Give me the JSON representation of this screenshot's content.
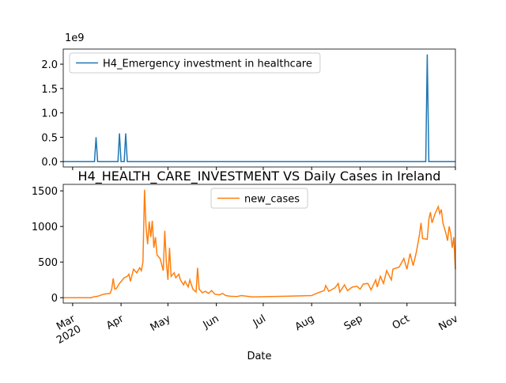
{
  "chart_data": [
    {
      "type": "line",
      "x_offset_label": "1e9",
      "x": [
        -6,
        14,
        15,
        16,
        29,
        30,
        31,
        33,
        34,
        35,
        226,
        227,
        228,
        245
      ],
      "series": [
        {
          "name": "H4_Emergency investment in healthcare",
          "color": "#1f77b4",
          "values": [
            0,
            0,
            500000000,
            0,
            0,
            580000000,
            0,
            0,
            580000000,
            0,
            0,
            2200000000,
            0,
            0
          ]
        }
      ],
      "xlim": [
        -6,
        245
      ],
      "xticks": [
        0,
        31,
        61,
        92,
        122,
        153,
        184,
        214,
        245
      ],
      "ylim": [
        -110000000,
        2310000000
      ],
      "yticks": [
        {
          "value": 0,
          "label": "0.0"
        },
        {
          "value": 500000000,
          "label": "0.5"
        },
        {
          "value": 1000000000,
          "label": "1.0"
        },
        {
          "value": 1500000000,
          "label": "1.5"
        },
        {
          "value": 2000000000,
          "label": "2.0"
        }
      ],
      "y_offset_label": "1e9",
      "legend": "upper left"
    },
    {
      "type": "line",
      "title": "H4_HEALTH_CARE_INVESTMENT VS Daily Cases in Ireland",
      "x_label": "Date",
      "x_year_label": "2020",
      "x": [
        -6,
        12,
        13,
        16,
        20,
        24,
        25,
        26,
        27,
        28,
        30,
        33,
        35,
        36,
        37,
        39,
        41,
        43,
        44,
        45,
        46,
        47,
        48,
        49,
        50,
        51,
        52,
        53,
        54,
        56,
        58,
        59,
        60,
        61,
        62,
        63,
        65,
        66,
        68,
        69,
        71,
        72,
        74,
        75,
        77,
        79,
        80,
        81,
        83,
        85,
        87,
        89,
        91,
        94,
        96,
        98,
        101,
        105,
        108,
        115,
        126,
        136,
        146,
        153,
        156,
        161,
        162,
        164,
        168,
        170,
        171,
        174,
        176,
        179,
        182,
        184,
        186,
        189,
        191,
        194,
        195,
        197,
        199,
        201,
        204,
        205,
        209,
        212,
        214,
        216,
        218,
        220,
        222,
        223,
        224,
        227,
        228,
        229,
        230,
        232,
        234,
        235,
        236,
        237,
        239,
        240,
        241,
        242,
        243,
        244,
        245
      ],
      "series": [
        {
          "name": "new_cases",
          "color": "#ff7f0e",
          "values": [
            0,
            0,
            10,
            20,
            50,
            60,
            120,
            270,
            120,
            130,
            200,
            280,
            300,
            330,
            230,
            400,
            350,
            420,
            380,
            500,
            1515,
            1000,
            750,
            1070,
            850,
            1080,
            700,
            850,
            600,
            550,
            380,
            940,
            500,
            250,
            700,
            300,
            350,
            280,
            330,
            250,
            180,
            230,
            150,
            250,
            120,
            80,
            420,
            120,
            70,
            90,
            60,
            100,
            50,
            40,
            60,
            30,
            20,
            15,
            30,
            10,
            15,
            20,
            25,
            30,
            60,
            100,
            170,
            90,
            140,
            200,
            80,
            180,
            100,
            150,
            160,
            120,
            190,
            200,
            110,
            250,
            150,
            300,
            200,
            380,
            250,
            400,
            430,
            550,
            400,
            620,
            450,
            640,
            880,
            1050,
            830,
            820,
            1100,
            1200,
            1050,
            1180,
            1280,
            1180,
            1240,
            1050,
            900,
            800,
            1000,
            900,
            700,
            850,
            400
          ]
        }
      ],
      "xlim": [
        -6,
        245
      ],
      "xticks": [
        {
          "value": 0,
          "label": "Mar"
        },
        {
          "value": 31,
          "label": "Apr"
        },
        {
          "value": 61,
          "label": "May"
        },
        {
          "value": 92,
          "label": "Jun"
        },
        {
          "value": 122,
          "label": "Jul"
        },
        {
          "value": 153,
          "label": "Aug"
        },
        {
          "value": 184,
          "label": "Sep"
        },
        {
          "value": 214,
          "label": "Oct"
        },
        {
          "value": 245,
          "label": "Nov"
        }
      ],
      "ylim": [
        -76,
        1591
      ],
      "yticks": [
        0,
        500,
        1000,
        1500
      ],
      "legend": "upper center"
    }
  ]
}
